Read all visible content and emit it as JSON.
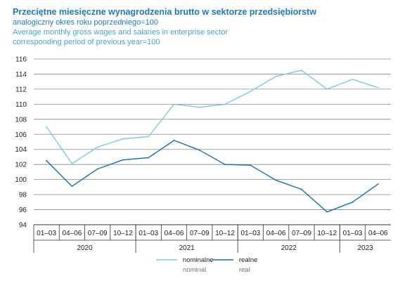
{
  "chart_data": {
    "type": "line",
    "title": "Przeciętne miesięczne wynagrodzenia brutto w sektorze przedsiębiorstw",
    "subtitle_pl": "analogiczny okres roku poprzedniego=100",
    "title_en": "Average monthly gross wages and salaries in enterprise sector",
    "subtitle_en": "corresponding period of previous year=100",
    "categories": [
      "01–03",
      "04–06",
      "07–09",
      "10–12",
      "01–03",
      "04–06",
      "07–09",
      "10–12",
      "01–03",
      "04–06",
      "07–09",
      "10–12",
      "01–03",
      "04–06"
    ],
    "years": [
      {
        "label": "2020",
        "count": 4
      },
      {
        "label": "2021",
        "count": 4
      },
      {
        "label": "2022",
        "count": 4
      },
      {
        "label": "2023",
        "count": 2
      }
    ],
    "y_ticks": [
      94,
      96,
      98,
      100,
      102,
      104,
      106,
      108,
      110,
      112,
      114,
      116
    ],
    "ylim": [
      94,
      116
    ],
    "grid": true,
    "legend_position": "bottom-center",
    "series": [
      {
        "name": "nominalne",
        "name_en": "nominal",
        "color": "#7cc6ea",
        "values": [
          107.0,
          102.1,
          104.3,
          105.4,
          105.7,
          110.0,
          109.6,
          110.0,
          111.7,
          113.7,
          114.5,
          112.0,
          113.3,
          112.2
        ]
      },
      {
        "name": "realne",
        "name_en": "real",
        "color": "#1a6fa8",
        "values": [
          102.5,
          99.1,
          101.4,
          102.6,
          102.9,
          105.2,
          103.9,
          102.0,
          101.9,
          99.9,
          98.7,
          95.7,
          97.0,
          99.4
        ]
      }
    ]
  }
}
